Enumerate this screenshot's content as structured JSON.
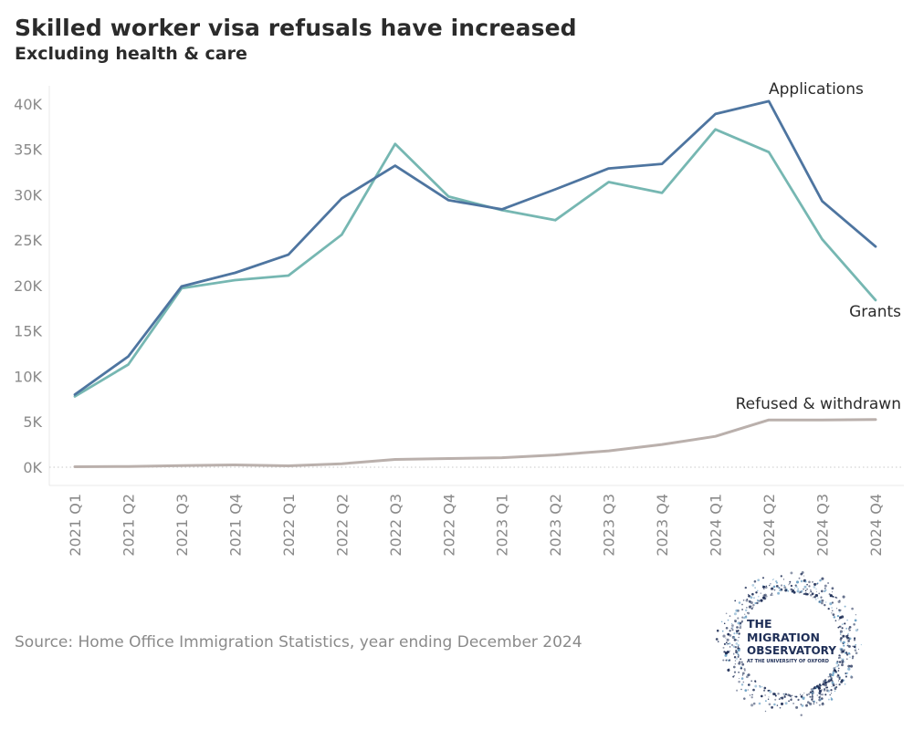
{
  "title": "Skilled worker visa refusals have increased",
  "subtitle": "Excluding health & care",
  "source": "Source: Home Office Immigration Statistics, year ending December 2024",
  "logo": {
    "line1": "THE",
    "line2": "MIGRATION",
    "line3": "OBSERVATORY",
    "line4": "AT THE UNIVERSITY OF OXFORD"
  },
  "colors": {
    "applications": "#4e75a0",
    "grants": "#76b7b2",
    "refused": "#bab0ac",
    "axis_text": "#8a8a8a",
    "logo_navy": "#1f2f57"
  },
  "chart_data": {
    "type": "line",
    "categories": [
      "2021 Q1",
      "2021 Q2",
      "2021 Q3",
      "2021 Q4",
      "2022 Q1",
      "2022 Q2",
      "2022 Q3",
      "2022 Q4",
      "2023 Q1",
      "2023 Q2",
      "2023 Q3",
      "2023 Q4",
      "2024 Q1",
      "2024 Q2",
      "2024 Q3",
      "2024 Q4"
    ],
    "ylim": [
      0,
      42000
    ],
    "yticks": [
      0,
      5000,
      10000,
      15000,
      20000,
      25000,
      30000,
      35000,
      40000
    ],
    "ytick_labels": [
      "0K",
      "5K",
      "10K",
      "15K",
      "20K",
      "25K",
      "30K",
      "35K",
      "40K"
    ],
    "grid": false,
    "series": [
      {
        "name": "Applications",
        "color": "#4e75a0",
        "values": [
          8000,
          12200,
          19900,
          21400,
          23400,
          29600,
          33200,
          29400,
          28400,
          30600,
          32900,
          33400,
          38900,
          40300,
          29300,
          24300
        ]
      },
      {
        "name": "Grants",
        "color": "#76b7b2",
        "values": [
          7800,
          11300,
          19700,
          20600,
          21100,
          25600,
          35600,
          29800,
          28300,
          27200,
          31400,
          30200,
          37200,
          34700,
          25100,
          18400
        ]
      },
      {
        "name": "Refused & withdrawn",
        "color": "#bab0ac",
        "values": [
          50,
          80,
          180,
          250,
          150,
          380,
          850,
          950,
          1050,
          1350,
          1800,
          2500,
          3400,
          5200,
          5200,
          5250
        ]
      }
    ]
  }
}
